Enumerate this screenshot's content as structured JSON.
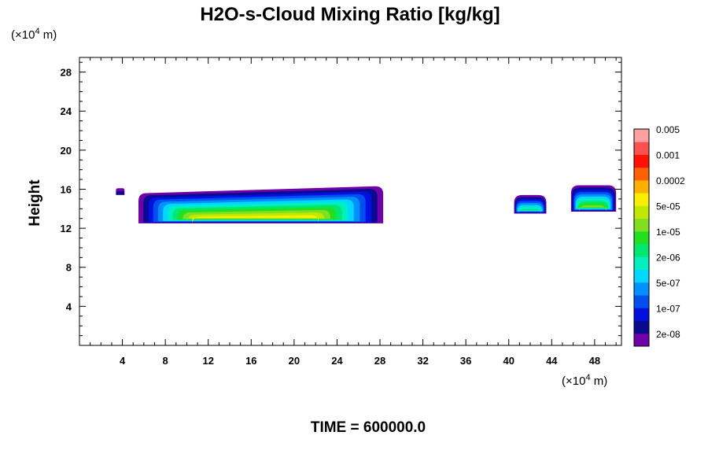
{
  "chart_data": {
    "type": "heatmap",
    "title": "H2O-s-Cloud Mixing Ratio [kg/kg]",
    "ylabel": "Height",
    "xunit_prefix": "(×10",
    "xunit_exp": "4",
    "xunit_suffix": " m)",
    "yunit_prefix": "(×10",
    "yunit_exp": "4",
    "yunit_suffix": " m)",
    "footer": "TIME = 600000.0",
    "xlim": [
      0,
      50.5
    ],
    "ylim": [
      0,
      29.5
    ],
    "xticks": [
      4,
      8,
      12,
      16,
      20,
      24,
      28,
      32,
      36,
      40,
      44,
      48
    ],
    "yticks": [
      4,
      8,
      12,
      16,
      20,
      24,
      28
    ],
    "grid": false,
    "legend_position": "right",
    "colorbar": {
      "colors": [
        "#7000a8",
        "#0a0a90",
        "#0010e0",
        "#0050f0",
        "#0090ff",
        "#00d8ff",
        "#00f0c0",
        "#00e870",
        "#20e020",
        "#80e020",
        "#c0e800",
        "#f8f000",
        "#ffb000",
        "#ff6000",
        "#ff1000",
        "#ff5050",
        "#ffa0a0"
      ],
      "labels": [
        "2e-08",
        "1e-07",
        "5e-07",
        "2e-06",
        "1e-05",
        "5e-05",
        "0.0002",
        "0.001",
        "0.005"
      ]
    },
    "regions": [
      {
        "name": "main-cloud-layer",
        "x_range": [
          5.5,
          28.3
        ],
        "base_km": [
          12.5,
          12.6
        ],
        "top_km": [
          15.6,
          16.3
        ],
        "max_color_level": "5e-05"
      },
      {
        "name": "small-patch-x4",
        "x_range": [
          3.4,
          4.2
        ],
        "base_km": [
          15.4
        ],
        "top_km": [
          16.1
        ],
        "max_color_level": "2e-08"
      },
      {
        "name": "cloud-x41",
        "x_range": [
          40.5,
          43.5
        ],
        "base_km": [
          13.5
        ],
        "top_km": [
          15.4
        ],
        "max_color_level": "2e-06"
      },
      {
        "name": "cloud-x47",
        "x_range": [
          45.8,
          50.0
        ],
        "base_km": [
          13.7
        ],
        "top_km": [
          16.4
        ],
        "max_color_level": "1e-05"
      }
    ]
  }
}
